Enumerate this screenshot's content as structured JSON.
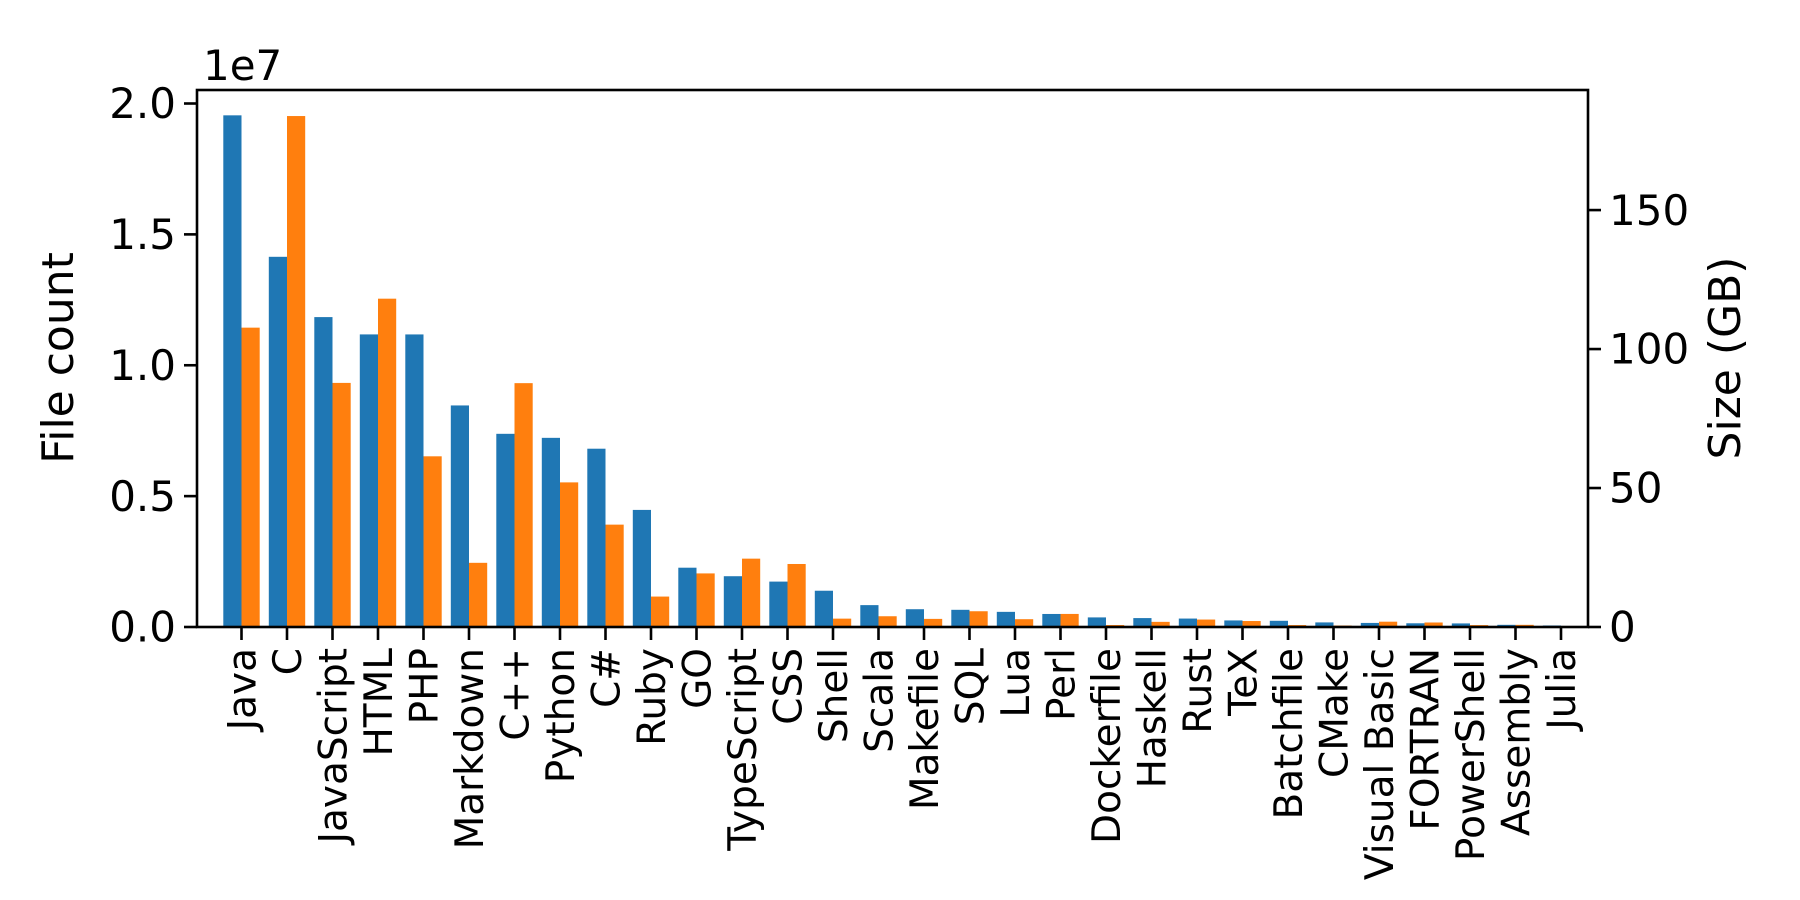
{
  "chart_data": {
    "type": "bar",
    "title": "",
    "categories": [
      "Java",
      "C",
      "JavaScript",
      "HTML",
      "PHP",
      "Markdown",
      "C++",
      "Python",
      "C#",
      "Ruby",
      "GO",
      "TypeScript",
      "CSS",
      "Shell",
      "Scala",
      "Makefile",
      "SQL",
      "Lua",
      "Perl",
      "Dockerfile",
      "Haskell",
      "Rust",
      "TeX",
      "Batchfile",
      "CMake",
      "Visual Basic",
      "FORTRAN",
      "PowerShell",
      "Assembly",
      "Julia"
    ],
    "series": [
      {
        "name": "File count",
        "axis": "left",
        "color": "#1f77b4",
        "values": [
          19548190,
          14143113,
          11839883,
          11178557,
          11177610,
          8464626,
          7380520,
          7226626,
          6811652,
          4473331,
          2265436,
          1940406,
          1734406,
          1385648,
          835755,
          679430,
          656671,
          578554,
          497949,
          366505,
          340623,
          322431,
          251015,
          236945,
          175282,
          155652,
          142038,
          136846,
          82905,
          58317
        ]
      },
      {
        "name": "Size (GB)",
        "axis": "right",
        "color": "#ff7f0e",
        "values": [
          107.7,
          183.83,
          87.82,
          118.12,
          61.41,
          23.09,
          87.73,
          52.03,
          36.83,
          10.95,
          19.28,
          24.59,
          22.67,
          3.01,
          3.87,
          2.92,
          5.67,
          2.81,
          4.7,
          0.71,
          1.85,
          2.68,
          2.15,
          0.7,
          0.54,
          1.91,
          1.62,
          0.69,
          0.78,
          0.29
        ]
      }
    ],
    "left_ylabel": "File count",
    "right_ylabel": "Size (GB)",
    "left_offset_text": "1e7",
    "left_ylim": [
      0,
      20516000
    ],
    "right_ylim": [
      0,
      193.2
    ],
    "left_ticks": [
      0,
      5000000,
      10000000,
      15000000,
      20000000
    ],
    "left_tick_labels": [
      "0.0",
      "0.5",
      "1.0",
      "1.5",
      "2.0"
    ],
    "right_ticks": [
      0,
      50,
      100,
      150
    ],
    "right_tick_labels": [
      "0",
      "50",
      "100",
      "150"
    ],
    "grid": false,
    "legend": "none",
    "colors": {
      "file_count": "#1f77b4",
      "size_gb": "#ff7f0e",
      "axis": "#000000",
      "background": "#ffffff"
    }
  }
}
